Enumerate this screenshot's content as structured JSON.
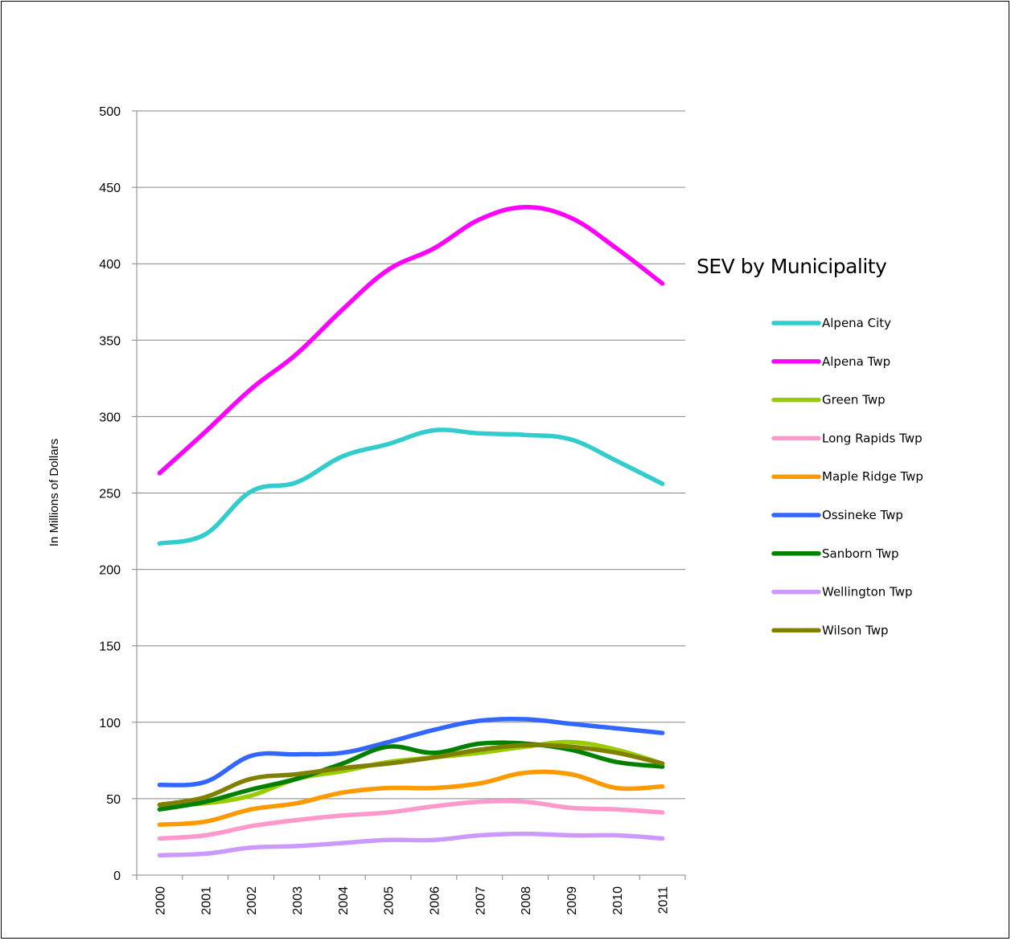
{
  "chart_data": {
    "type": "line",
    "title": "SEV by Municipality",
    "xlabel": "",
    "ylabel": "In Millions of Dollars",
    "ylim": [
      0,
      500
    ],
    "yticks": [
      0,
      50,
      100,
      150,
      200,
      250,
      300,
      350,
      400,
      450,
      500
    ],
    "grid": true,
    "legend_position": "right",
    "categories": [
      "2000",
      "2001",
      "2002",
      "2003",
      "2004",
      "2005",
      "2006",
      "2007",
      "2008",
      "2009",
      "2010",
      "2011"
    ],
    "series": [
      {
        "name": "Alpena City",
        "color": "#33CCCC",
        "values": [
          217,
          223,
          251,
          257,
          274,
          282,
          291,
          289,
          288,
          285,
          271,
          256
        ]
      },
      {
        "name": "Alpena Twp",
        "color": "#FF00FF",
        "values": [
          263,
          290,
          318,
          341,
          370,
          396,
          410,
          429,
          437,
          430,
          410,
          387
        ]
      },
      {
        "name": "Green Twp",
        "color": "#99CC00",
        "values": [
          46,
          47,
          52,
          63,
          68,
          74,
          77,
          80,
          84,
          87,
          82,
          73
        ]
      },
      {
        "name": "Long Rapids Twp",
        "color": "#FF99CC",
        "values": [
          24,
          26,
          32,
          36,
          39,
          41,
          45,
          48,
          48,
          44,
          43,
          41
        ]
      },
      {
        "name": "Maple Ridge Twp",
        "color": "#FF9900",
        "values": [
          33,
          35,
          43,
          47,
          54,
          57,
          57,
          60,
          67,
          66,
          57,
          58
        ]
      },
      {
        "name": "Ossineke Twp",
        "color": "#3366FF",
        "values": [
          59,
          61,
          78,
          79,
          80,
          87,
          95,
          101,
          102,
          99,
          96,
          93
        ]
      },
      {
        "name": "Sanborn Twp",
        "color": "#008000",
        "values": [
          43,
          48,
          56,
          63,
          73,
          84,
          80,
          86,
          86,
          82,
          74,
          71
        ]
      },
      {
        "name": "Wellington Twp",
        "color": "#CC99FF",
        "values": [
          13,
          14,
          18,
          19,
          21,
          23,
          23,
          26,
          27,
          26,
          26,
          24
        ]
      },
      {
        "name": "Wilson Twp",
        "color": "#808000",
        "values": [
          46,
          51,
          63,
          66,
          70,
          73,
          77,
          82,
          85,
          84,
          80,
          73
        ]
      }
    ]
  }
}
